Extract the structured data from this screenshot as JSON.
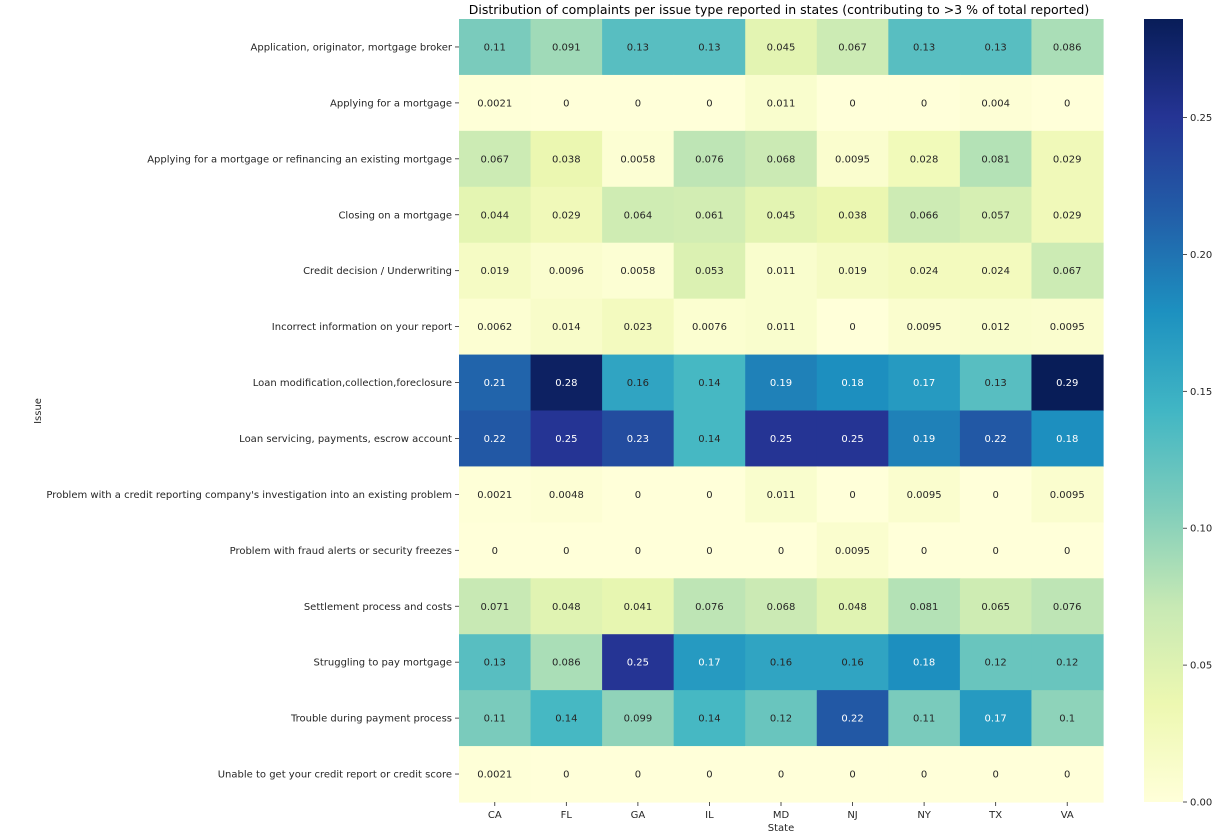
{
  "chart_data": {
    "type": "heatmap",
    "title": "Distribution of complaints per issue type reported in states (contributing to >3 % of total reported)",
    "xlabel": "State",
    "ylabel": "Issue",
    "colormap": "YlGnBu",
    "x": [
      "CA",
      "FL",
      "GA",
      "IL",
      "MD",
      "NJ",
      "NY",
      "TX",
      "VA"
    ],
    "y": [
      "Application, originator, mortgage broker",
      "Applying for a mortgage",
      "Applying for a mortgage or refinancing an existing mortgage",
      "Closing on a mortgage",
      "Credit decision / Underwriting",
      "Incorrect information on your report",
      "Loan modification,collection,foreclosure",
      "Loan servicing, payments, escrow account",
      "Problem with a credit reporting company's investigation into an existing problem",
      "Problem with fraud alerts or security freezes",
      "Settlement process and costs",
      "Struggling to pay mortgage",
      "Trouble during payment process",
      "Unable to get your credit report or credit score"
    ],
    "values": [
      [
        0.11,
        0.091,
        0.13,
        0.13,
        0.045,
        0.067,
        0.13,
        0.13,
        0.086
      ],
      [
        0.0021,
        0,
        0,
        0,
        0.011,
        0,
        0,
        0.004,
        0
      ],
      [
        0.067,
        0.038,
        0.0058,
        0.076,
        0.068,
        0.0095,
        0.028,
        0.081,
        0.029
      ],
      [
        0.044,
        0.029,
        0.064,
        0.061,
        0.045,
        0.038,
        0.066,
        0.057,
        0.029
      ],
      [
        0.019,
        0.0096,
        0.0058,
        0.053,
        0.011,
        0.019,
        0.024,
        0.024,
        0.067
      ],
      [
        0.0062,
        0.014,
        0.023,
        0.0076,
        0.011,
        0,
        0.0095,
        0.012,
        0.0095
      ],
      [
        0.21,
        0.28,
        0.16,
        0.14,
        0.19,
        0.18,
        0.17,
        0.13,
        0.29
      ],
      [
        0.22,
        0.25,
        0.23,
        0.14,
        0.25,
        0.25,
        0.19,
        0.22,
        0.18
      ],
      [
        0.0021,
        0.0048,
        0,
        0,
        0.011,
        0,
        0.0095,
        0,
        0.0095
      ],
      [
        0,
        0,
        0,
        0,
        0,
        0.0095,
        0,
        0,
        0
      ],
      [
        0.071,
        0.048,
        0.041,
        0.076,
        0.068,
        0.048,
        0.081,
        0.065,
        0.076
      ],
      [
        0.13,
        0.086,
        0.25,
        0.17,
        0.16,
        0.16,
        0.18,
        0.12,
        0.12
      ],
      [
        0.11,
        0.14,
        0.099,
        0.14,
        0.12,
        0.22,
        0.11,
        0.17,
        0.1
      ],
      [
        0.0021,
        0,
        0,
        0,
        0,
        0,
        0,
        0,
        0
      ]
    ],
    "vmin": 0,
    "vmax": 0.286,
    "colorbar": {
      "ticks": [
        0.0,
        0.05,
        0.1,
        0.15,
        0.2,
        0.25
      ],
      "tick_labels": [
        "0.00",
        "0.05",
        "0.10",
        "0.15",
        "0.20",
        "0.25"
      ],
      "placement": "right"
    },
    "colormap_stops": [
      "#ffffd9",
      "#edf8b1",
      "#c7e9b4",
      "#7fcdbb",
      "#41b6c4",
      "#1d91c0",
      "#225ea8",
      "#253494",
      "#081d58"
    ],
    "annotation_text_colors": {
      "light_bg": "#262626",
      "dark_bg": "#ffffff"
    }
  }
}
